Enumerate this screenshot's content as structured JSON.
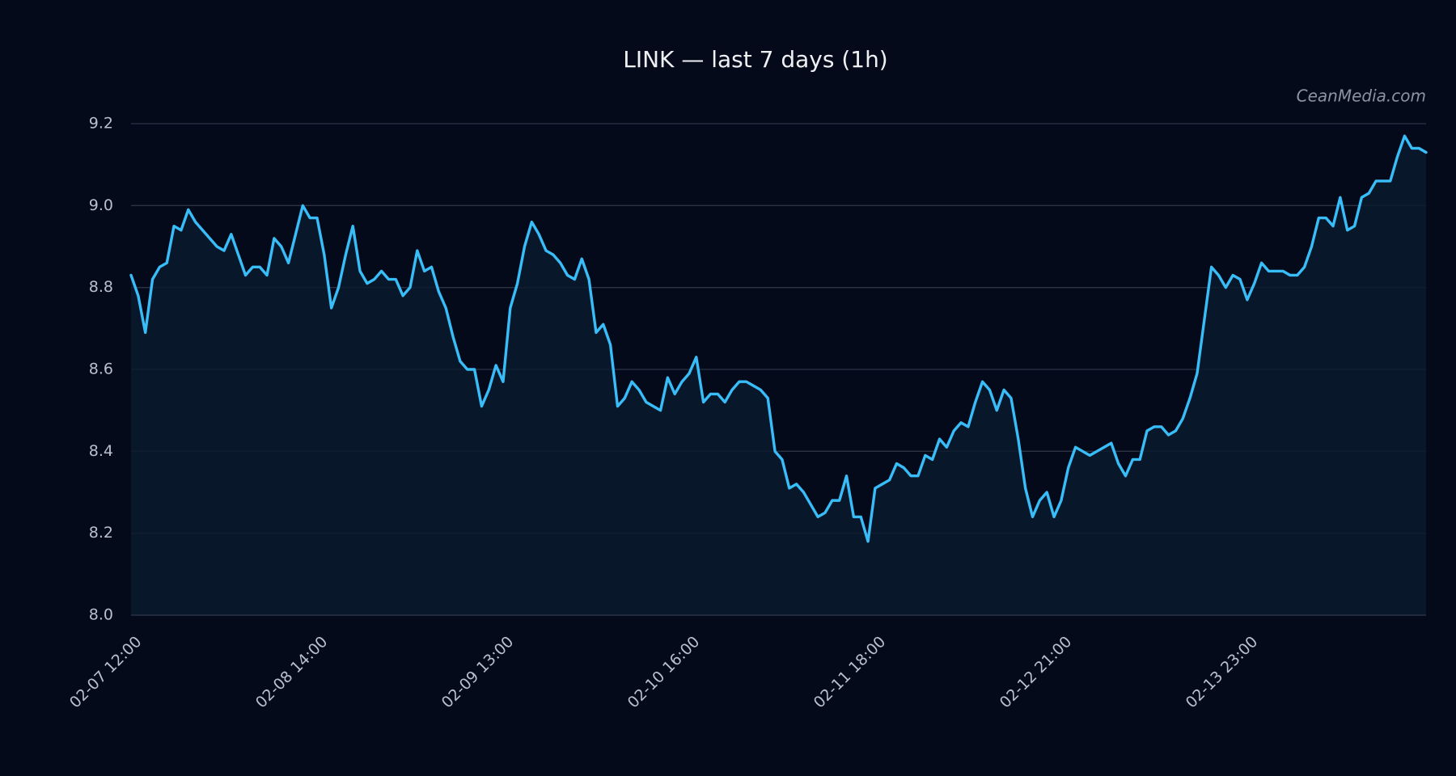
{
  "chart_data": {
    "type": "line",
    "title": "LINK — last 7 days (1h)",
    "watermark": "CeanMedia.com",
    "color": "#38bdf8",
    "categories": [
      "02-07 12:00",
      null,
      null,
      null,
      null,
      null,
      null,
      null,
      null,
      null,
      null,
      null,
      null,
      null,
      null,
      null,
      null,
      null,
      null,
      null,
      null,
      null,
      null,
      null,
      null,
      null,
      "02-08 14:00",
      null,
      null,
      null,
      null,
      null,
      null,
      null,
      null,
      null,
      null,
      null,
      null,
      null,
      null,
      null,
      null,
      null,
      null,
      null,
      null,
      null,
      null,
      null,
      null,
      null,
      "02-09 13:00",
      null,
      null,
      null,
      null,
      null,
      null,
      null,
      null,
      null,
      null,
      null,
      null,
      null,
      null,
      null,
      null,
      null,
      null,
      null,
      null,
      null,
      null,
      null,
      null,
      null,
      "02-10 16:00",
      null,
      null,
      null,
      null,
      null,
      null,
      null,
      null,
      null,
      null,
      null,
      null,
      null,
      null,
      null,
      null,
      null,
      null,
      null,
      null,
      null,
      null,
      null,
      null,
      null,
      "02-11 18:00",
      null,
      null,
      null,
      null,
      null,
      null,
      null,
      null,
      null,
      null,
      null,
      null,
      null,
      null,
      null,
      null,
      null,
      null,
      null,
      null,
      null,
      null,
      null,
      null,
      null,
      "02-12 21:00",
      null,
      null,
      null,
      null,
      null,
      null,
      null,
      null,
      null,
      null,
      null,
      null,
      null,
      null,
      null,
      null,
      null,
      null,
      null,
      null,
      null,
      null,
      null,
      null,
      null,
      "02-13 23:00",
      null,
      null,
      null,
      null,
      null,
      null,
      null,
      null,
      null,
      null,
      null,
      null,
      null,
      null,
      null,
      null,
      null,
      null,
      null,
      null,
      null,
      null,
      null,
      null,
      null
    ],
    "values": [
      8.83,
      8.78,
      8.69,
      8.82,
      8.85,
      8.86,
      8.95,
      8.94,
      8.99,
      8.96,
      8.94,
      8.92,
      8.9,
      8.89,
      8.93,
      8.88,
      8.83,
      8.85,
      8.85,
      8.83,
      8.92,
      8.9,
      8.86,
      8.93,
      9.0,
      8.97,
      8.97,
      8.88,
      8.75,
      8.8,
      8.88,
      8.95,
      8.84,
      8.81,
      8.82,
      8.84,
      8.82,
      8.82,
      8.78,
      8.8,
      8.89,
      8.84,
      8.85,
      8.79,
      8.75,
      8.68,
      8.62,
      8.6,
      8.6,
      8.51,
      8.55,
      8.61,
      8.57,
      8.75,
      8.81,
      8.9,
      8.96,
      8.93,
      8.89,
      8.88,
      8.86,
      8.83,
      8.82,
      8.87,
      8.82,
      8.69,
      8.71,
      8.66,
      8.51,
      8.53,
      8.57,
      8.55,
      8.52,
      8.51,
      8.5,
      8.58,
      8.54,
      8.57,
      8.59,
      8.63,
      8.52,
      8.54,
      8.54,
      8.52,
      8.55,
      8.57,
      8.57,
      8.56,
      8.55,
      8.53,
      8.4,
      8.38,
      8.31,
      8.32,
      8.3,
      8.27,
      8.24,
      8.25,
      8.28,
      8.28,
      8.34,
      8.24,
      8.24,
      8.18,
      8.31,
      8.32,
      8.33,
      8.37,
      8.36,
      8.34,
      8.34,
      8.39,
      8.38,
      8.43,
      8.41,
      8.45,
      8.47,
      8.46,
      8.52,
      8.57,
      8.55,
      8.5,
      8.55,
      8.53,
      8.43,
      8.31,
      8.24,
      8.28,
      8.3,
      8.24,
      8.28,
      8.36,
      8.41,
      8.4,
      8.39,
      8.4,
      8.41,
      8.42,
      8.37,
      8.34,
      8.38,
      8.38,
      8.45,
      8.46,
      8.46,
      8.44,
      8.45,
      8.48,
      8.53,
      8.59,
      8.72,
      8.85,
      8.83,
      8.8,
      8.83,
      8.82,
      8.77,
      8.81,
      8.86,
      8.84,
      8.84,
      8.84,
      8.83,
      8.83,
      8.85,
      8.9,
      8.97,
      8.97,
      8.95,
      9.02,
      8.94,
      8.95,
      9.02,
      9.03,
      9.06,
      9.06,
      9.06,
      9.12,
      9.17,
      9.14,
      9.14,
      9.13
    ],
    "ylim": [
      8.0,
      9.2
    ],
    "yticks": [
      {
        "value": 8,
        "label": "8.0"
      },
      8.2,
      8.4,
      8.6,
      8.8,
      {
        "value": 9,
        "label": "9.0"
      },
      9.2
    ],
    "grid": true,
    "area": true
  }
}
